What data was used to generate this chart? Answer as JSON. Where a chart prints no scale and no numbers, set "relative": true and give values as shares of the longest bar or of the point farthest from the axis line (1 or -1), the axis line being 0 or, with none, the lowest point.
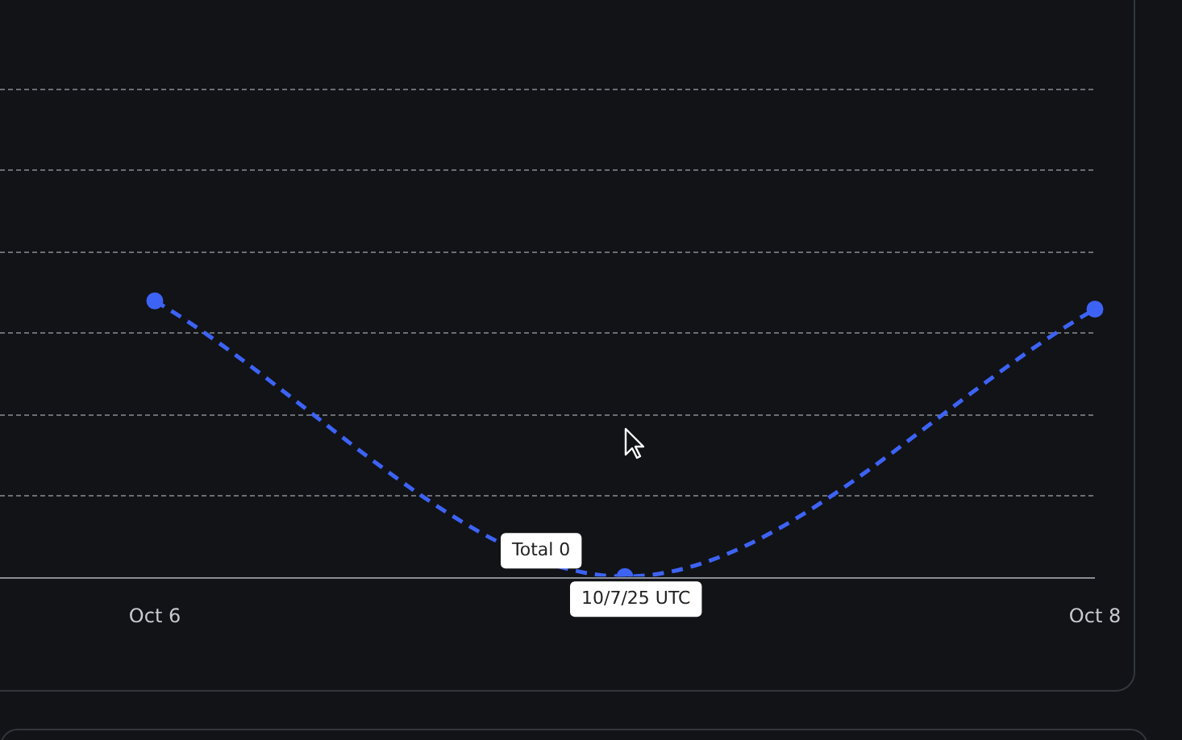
{
  "chart_data": {
    "type": "line",
    "relative": true,
    "categories": [
      "Oct 6",
      null,
      "Oct 8"
    ],
    "series": [
      {
        "color": "#3d63f5",
        "values": [
          1,
          0,
          0.97
        ]
      }
    ],
    "annotations": [
      "Total 0",
      "10/7/25 UTC"
    ],
    "grid": "y",
    "legend": false,
    "marker": "circle",
    "line_style": "dashed"
  }
}
